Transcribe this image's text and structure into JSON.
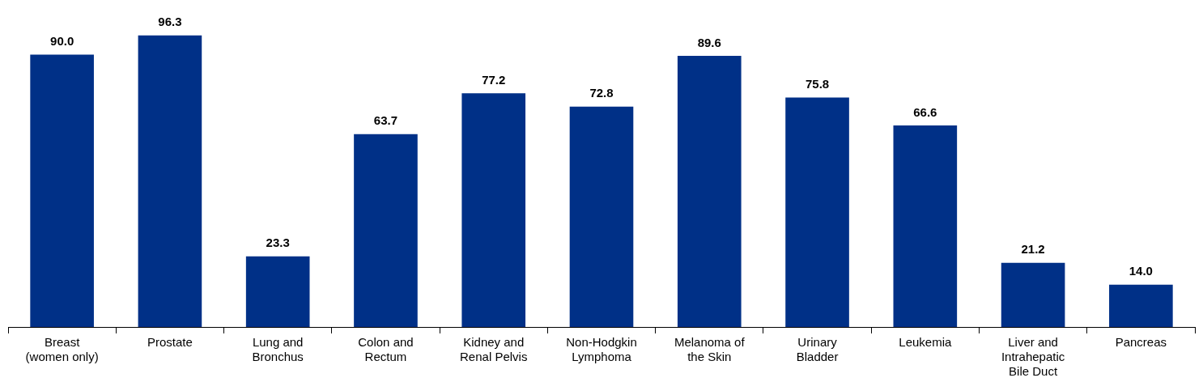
{
  "chart_data": {
    "type": "bar",
    "categories": [
      "Breast (women only)",
      "Prostate",
      "Lung and Bronchus",
      "Colon and Rectum",
      "Kidney and Renal Pelvis",
      "Non-Hodgkin Lymphoma",
      "Melanoma of the Skin",
      "Urinary Bladder",
      "Leukemia",
      "Liver and Intrahepatic Bile Duct",
      "Pancreas"
    ],
    "values": [
      90.0,
      96.3,
      23.3,
      63.7,
      77.2,
      72.8,
      89.6,
      75.8,
      66.6,
      21.2,
      14.0
    ],
    "color": "#003087",
    "value_labels": [
      "90.0",
      "96.3",
      "23.3",
      "63.7",
      "77.2",
      "72.8",
      "89.6",
      "75.8",
      "66.6",
      "21.2",
      "14.0"
    ]
  }
}
